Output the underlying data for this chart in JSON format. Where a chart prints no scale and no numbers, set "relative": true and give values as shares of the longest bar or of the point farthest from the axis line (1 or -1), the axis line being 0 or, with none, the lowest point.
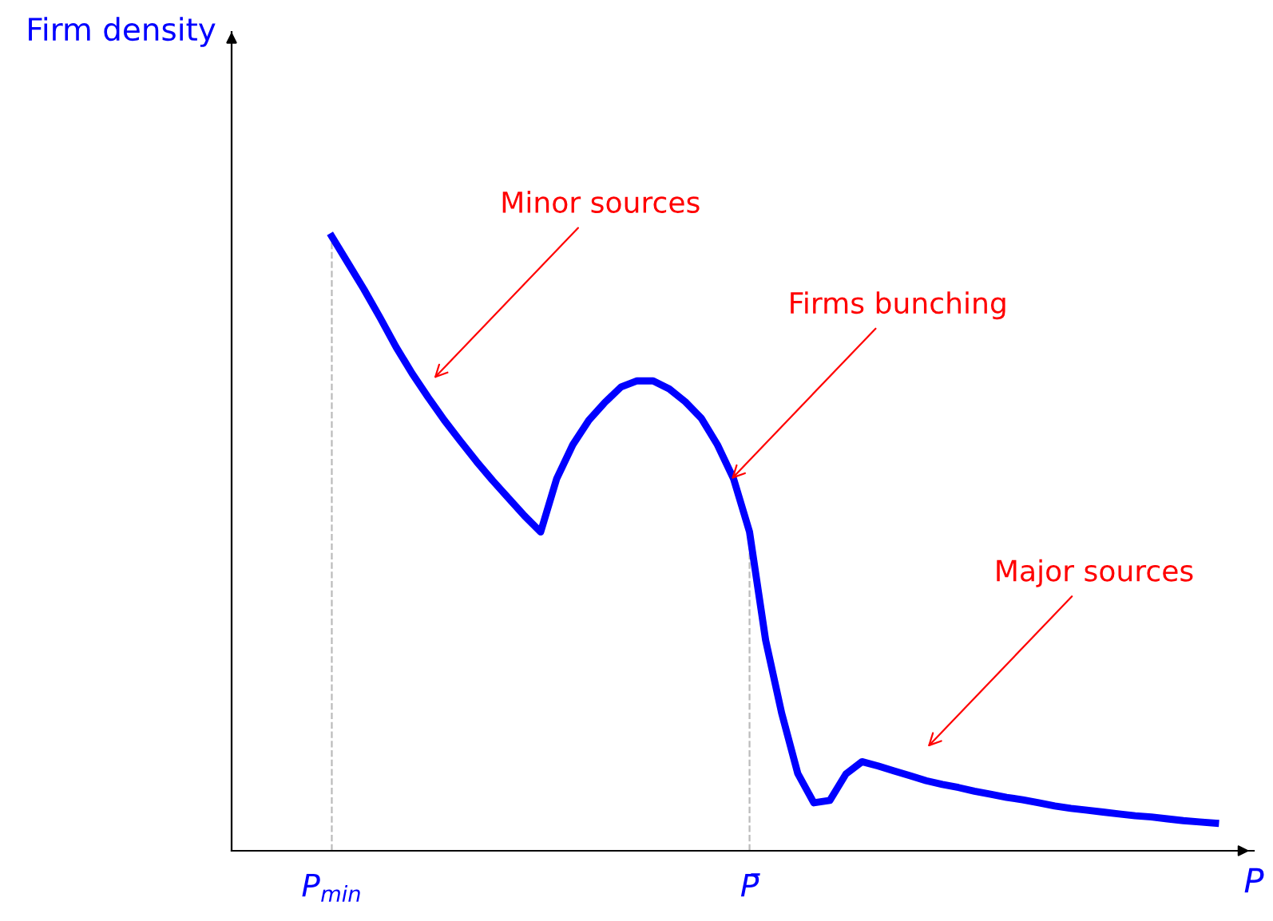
{
  "chart_data": {
    "type": "line",
    "relative": true,
    "xlabel": "P",
    "categories": [
      "P$_{min}$",
      null,
      null,
      null,
      null,
      null,
      null,
      null,
      null,
      null,
      null,
      null,
      null,
      null,
      null,
      null,
      null,
      null,
      null,
      null,
      null,
      null,
      null,
      null,
      null,
      null,
      "P̄",
      null,
      null,
      null,
      null,
      null,
      null,
      null,
      null,
      null,
      null,
      null,
      null,
      null,
      null,
      null,
      null,
      null,
      null,
      null,
      null,
      null,
      null,
      null,
      null,
      null,
      null,
      null,
      null,
      null
    ],
    "series": [
      {
        "color": "#0000ff",
        "values": [
          1.0,
          0.957,
          0.914,
          0.868,
          0.82,
          0.777,
          0.738,
          0.701,
          0.667,
          0.634,
          0.603,
          0.574,
          0.545,
          0.519,
          0.606,
          0.661,
          0.701,
          0.73,
          0.755,
          0.765,
          0.765,
          0.752,
          0.731,
          0.704,
          0.661,
          0.606,
          0.519,
          0.343,
          0.224,
          0.126,
          0.078,
          0.082,
          0.125,
          0.145,
          0.138,
          0.13,
          0.122,
          0.114,
          0.108,
          0.103,
          0.097,
          0.092,
          0.087,
          0.083,
          0.078,
          0.073,
          0.069,
          0.066,
          0.063,
          0.06,
          0.057,
          0.055,
          0.052,
          0.049,
          0.047,
          0.045
        ]
      }
    ],
    "ref_lines": [
      {
        "axis": "x",
        "value": "P$_{min}$",
        "color": "#bbbbbb",
        "line_style": "dashed"
      },
      {
        "axis": "x",
        "value": "P̄",
        "color": "#bbbbbb",
        "line_style": "dashed"
      }
    ],
    "annotations": [
      "Minor sources",
      "Firms bunching",
      "Major sources",
      "Firm density"
    ],
    "legend": false,
    "marker": "none",
    "line_style": "solid"
  }
}
